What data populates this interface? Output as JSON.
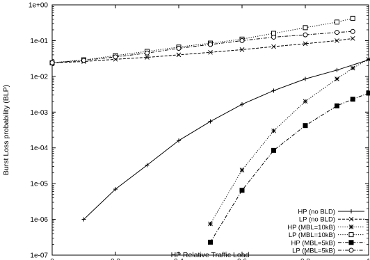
{
  "chart_data": {
    "type": "line",
    "title": "",
    "xlabel": "HP Relative Traffic Load",
    "ylabel": "Burst Loss probability (BLP)",
    "xlim": [
      0,
      1
    ],
    "ylim": [
      1e-07,
      1
    ],
    "yscale": "log",
    "grid": false,
    "legend_position": "bottom-right",
    "x_ticks": [
      0,
      0.2,
      0.4,
      0.6,
      0.8,
      1
    ],
    "x_tick_labels": [
      "0",
      "0.2",
      "0.4",
      "0.6",
      "0.8",
      "1"
    ],
    "y_ticks": [
      1e-07,
      1e-06,
      1e-05,
      0.0001,
      0.001,
      0.01,
      0.1,
      1
    ],
    "y_tick_labels": [
      "1e-07",
      "1e-06",
      "1e-05",
      "1e-04",
      "1e-03",
      "1e-02",
      "1e-01",
      "1e+00"
    ],
    "series": [
      {
        "name": "HP (no BLD)",
        "marker": "plus",
        "dash": "solid",
        "points": [
          [
            0.1,
            1e-06
          ],
          [
            0.2,
            7e-06
          ],
          [
            0.3,
            3.3e-05
          ],
          [
            0.4,
            0.00016
          ],
          [
            0.5,
            0.00055
          ],
          [
            0.6,
            0.00165
          ],
          [
            0.7,
            0.004
          ],
          [
            0.8,
            0.0085
          ],
          [
            0.9,
            0.015
          ],
          [
            1.0,
            0.029
          ]
        ]
      },
      {
        "name": "LP (no BLD)",
        "marker": "x",
        "dash": "dashed",
        "points": [
          [
            0,
            0.024
          ],
          [
            0.1,
            0.026
          ],
          [
            0.2,
            0.03
          ],
          [
            0.3,
            0.034
          ],
          [
            0.4,
            0.04
          ],
          [
            0.5,
            0.047
          ],
          [
            0.6,
            0.056
          ],
          [
            0.7,
            0.068
          ],
          [
            0.8,
            0.082
          ],
          [
            0.9,
            0.1
          ],
          [
            0.95,
            0.115
          ]
        ]
      },
      {
        "name": "HP (MBL=10kB)",
        "marker": "asterisk",
        "dash": "dotted",
        "points": [
          [
            0.5,
            7.5e-07
          ],
          [
            0.6,
            2.4e-05
          ],
          [
            0.7,
            0.0003
          ],
          [
            0.8,
            0.002
          ],
          [
            0.9,
            0.0085
          ],
          [
            0.95,
            0.017
          ],
          [
            1.0,
            0.03
          ]
        ]
      },
      {
        "name": "LP (MBL=10kB)",
        "marker": "square-open",
        "dash": "dotted",
        "points": [
          [
            0,
            0.024
          ],
          [
            0.1,
            0.029
          ],
          [
            0.2,
            0.038
          ],
          [
            0.3,
            0.05
          ],
          [
            0.4,
            0.066
          ],
          [
            0.5,
            0.085
          ],
          [
            0.6,
            0.11
          ],
          [
            0.7,
            0.16
          ],
          [
            0.8,
            0.23
          ],
          [
            0.9,
            0.33
          ],
          [
            0.95,
            0.42
          ]
        ]
      },
      {
        "name": "HP (MBL=5kB)",
        "marker": "square-filled",
        "dash": "dashdot",
        "points": [
          [
            0.5,
            2.3e-07
          ],
          [
            0.6,
            6.5e-06
          ],
          [
            0.7,
            8.5e-05
          ],
          [
            0.8,
            0.00042
          ],
          [
            0.9,
            0.0015
          ],
          [
            0.95,
            0.0023
          ],
          [
            1.0,
            0.0034
          ]
        ]
      },
      {
        "name": "LP (MBL=5kB)",
        "marker": "circle-open",
        "dash": "dashdot",
        "points": [
          [
            0,
            0.024
          ],
          [
            0.1,
            0.028
          ],
          [
            0.2,
            0.035
          ],
          [
            0.3,
            0.045
          ],
          [
            0.4,
            0.061
          ],
          [
            0.5,
            0.078
          ],
          [
            0.6,
            0.1
          ],
          [
            0.7,
            0.125
          ],
          [
            0.8,
            0.145
          ],
          [
            0.9,
            0.17
          ],
          [
            0.95,
            0.18
          ]
        ]
      }
    ]
  }
}
